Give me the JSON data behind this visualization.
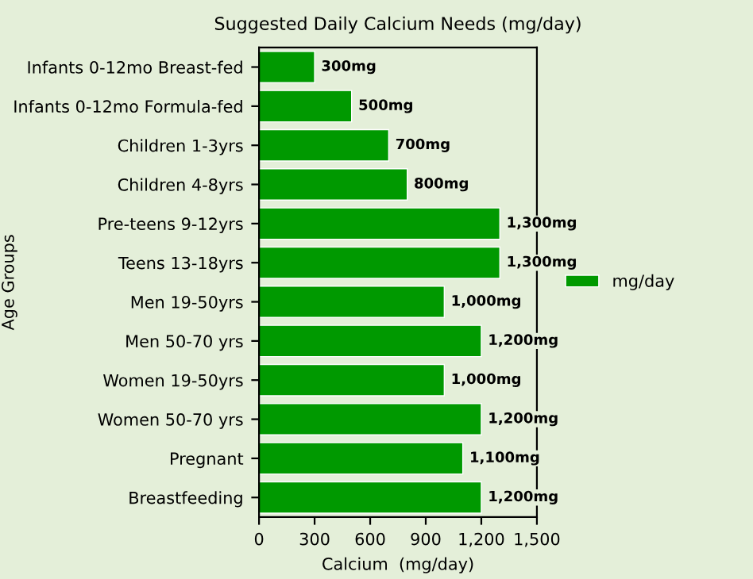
{
  "chart_data": {
    "type": "bar",
    "orientation": "horizontal",
    "title": "Suggested Daily Calcium Needs (mg/day)",
    "xlabel": "Calcium  (mg/day)",
    "ylabel": "Age Groups",
    "categories": [
      "Infants 0-12mo Breast-fed",
      "Infants 0-12mo Formula-fed",
      "Children 1-3yrs",
      "Children 4-8yrs",
      "Pre-teens 9-12yrs",
      "Teens 13-18yrs",
      "Men 19-50yrs",
      "Men 50-70 yrs",
      "Women 19-50yrs",
      "Women 50-70 yrs",
      "Pregnant",
      "Breastfeeding"
    ],
    "series": [
      {
        "name": "mg/day",
        "color": "#009900",
        "values": [
          300,
          500,
          700,
          800,
          1300,
          1300,
          1000,
          1200,
          1000,
          1200,
          1100,
          1200
        ],
        "value_labels": [
          "300mg",
          "500mg",
          "700mg",
          "800mg",
          "1,300mg",
          "1,300mg",
          "1,000mg",
          "1,200mg",
          "1,000mg",
          "1,200mg",
          "1,100mg",
          "1,200mg"
        ]
      }
    ],
    "xlim": [
      0,
      1500
    ],
    "xticks": [
      0,
      300,
      600,
      900,
      {
        "value": 1200,
        "label": "1,200"
      },
      {
        "value": 1500,
        "label": "1,500"
      }
    ],
    "legend": "right",
    "grid": false
  }
}
